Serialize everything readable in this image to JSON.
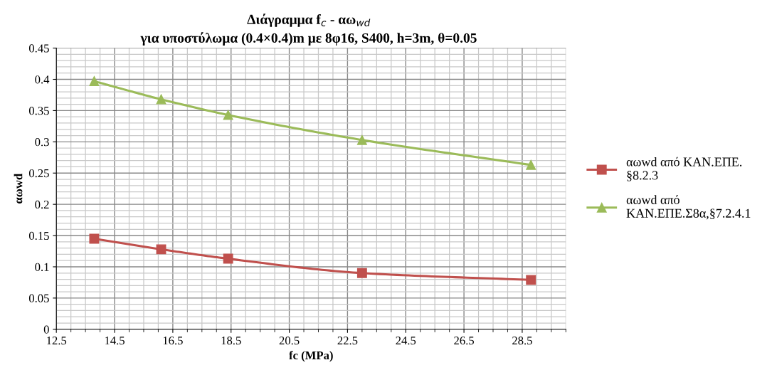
{
  "chart_data": {
    "type": "line",
    "title": "Διάγραμμα f$_{c}$ - αω$_{wd}$",
    "subtitle": "για υποστύλωμα (0.4×0.4)m με 8φ16, S400, h=3m, θ=0.05",
    "xlabel": "fc (MPa)",
    "ylabel": "αωwd",
    "x": [
      13.8,
      16.1,
      18.4,
      23.0,
      28.8
    ],
    "series": [
      {
        "name": "αωwd από ΚΑΝ.ΕΠΕ.\n§8.2.3",
        "color": "#c0504d",
        "marker": "square",
        "values": [
          0.145,
          0.128,
          0.113,
          0.09,
          0.079
        ]
      },
      {
        "name": "αωwd από\nΚΑΝ.ΕΠΕ.Σ8α,§7.2.4.1",
        "color": "#9bbb59",
        "marker": "triangle",
        "values": [
          0.397,
          0.368,
          0.343,
          0.303,
          0.263
        ]
      }
    ],
    "xlim": [
      12.5,
      30
    ],
    "xticks": [
      12.5,
      14.5,
      16.5,
      18.5,
      20.5,
      22.5,
      24.5,
      26.5,
      28.5
    ],
    "ylim": [
      0,
      0.45
    ],
    "yticks": [
      0,
      0.05,
      0.1,
      0.15,
      0.2,
      0.25,
      0.3,
      0.35,
      0.4,
      0.45
    ],
    "grid": true,
    "legend": "right",
    "line_style": "solid"
  }
}
